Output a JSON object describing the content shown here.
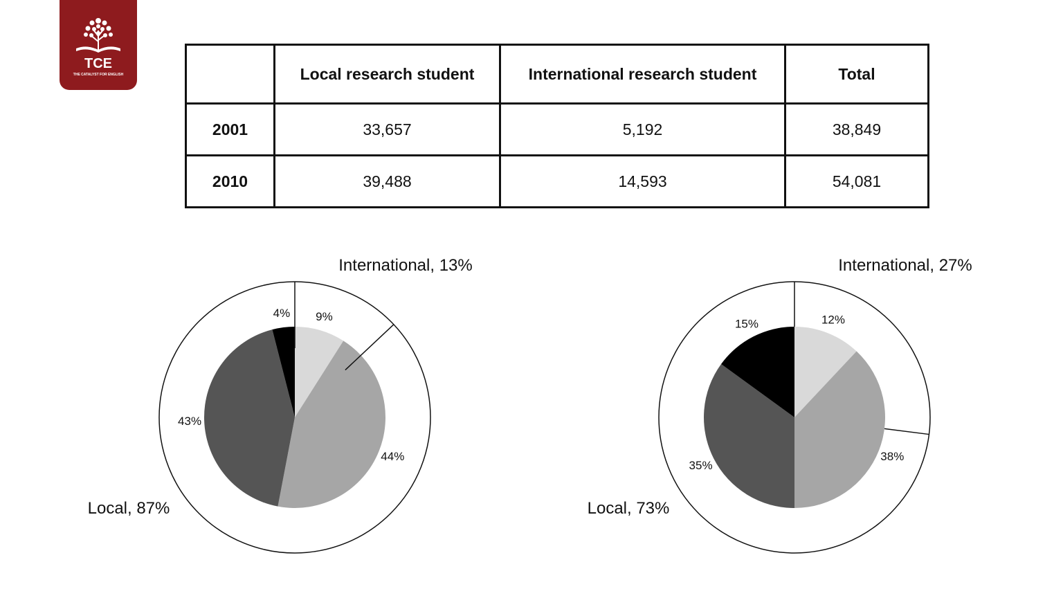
{
  "logo": {
    "title": "TCE",
    "subtitle": "THE CATALYST FOR ENGLISH",
    "brand_color": "#8e1b1e",
    "icon": "tree-book-icon"
  },
  "table": {
    "headers": [
      "",
      "Local research student",
      "International research student",
      "Total"
    ],
    "rows": [
      {
        "year": "2001",
        "local": "33,657",
        "international": "5,192",
        "total": "38,849"
      },
      {
        "year": "2010",
        "local": "39,488",
        "international": "14,593",
        "total": "54,081"
      }
    ]
  },
  "chart_data": [
    {
      "type": "pie",
      "title": "",
      "inner": {
        "slices": [
          {
            "value": 9,
            "label": "9%",
            "color": "#d9d9d9"
          },
          {
            "value": 44,
            "label": "44%",
            "color": "#a6a6a6"
          },
          {
            "value": 43,
            "label": "43%",
            "color": "#555555"
          },
          {
            "value": 4,
            "label": "4%",
            "color": "#000000"
          }
        ]
      },
      "outer": {
        "groups": [
          {
            "name": "International",
            "value": 13,
            "label": "International, 13%"
          },
          {
            "name": "Local",
            "value": 87,
            "label": "Local, 87%"
          }
        ]
      }
    },
    {
      "type": "pie",
      "title": "",
      "inner": {
        "slices": [
          {
            "value": 12,
            "label": "12%",
            "color": "#d9d9d9"
          },
          {
            "value": 38,
            "label": "38%",
            "color": "#a6a6a6"
          },
          {
            "value": 35,
            "label": "35%",
            "color": "#555555"
          },
          {
            "value": 15,
            "label": "15%",
            "color": "#000000"
          }
        ]
      },
      "outer": {
        "groups": [
          {
            "name": "International",
            "value": 27,
            "label": "International, 27%"
          },
          {
            "name": "Local",
            "value": 73,
            "label": "Local, 73%"
          }
        ]
      }
    }
  ]
}
